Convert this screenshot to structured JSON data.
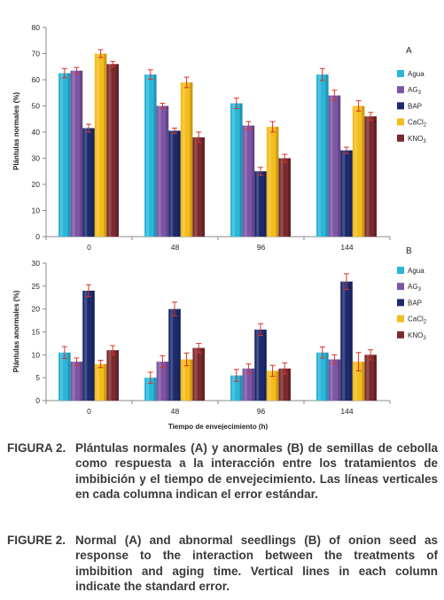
{
  "chart_data": [
    {
      "type": "bar",
      "panel_label": "A",
      "ylabel": "Plántulas normales (%)",
      "xlabel": "Tiempo de envejecimiento (h)",
      "categories": [
        "0",
        "48",
        "96",
        "144"
      ],
      "ylim": [
        0,
        80
      ],
      "yticks": [
        "0",
        "10",
        "20",
        "30",
        "40",
        "50",
        "60",
        "70",
        "80"
      ],
      "grid": false,
      "legend_position": "right",
      "series": [
        {
          "name": "Agua",
          "values": [
            62.5,
            62,
            51,
            62
          ],
          "errors": [
            1.8,
            1.8,
            2.0,
            2.3
          ],
          "color": "#29b6d9"
        },
        {
          "name": "AG3",
          "values": [
            63.5,
            50,
            42.5,
            54
          ],
          "errors": [
            1.2,
            1.0,
            1.5,
            2.0
          ],
          "color": "#7d55a5"
        },
        {
          "name": "BAP",
          "values": [
            41.5,
            40.5,
            25,
            33
          ],
          "errors": [
            1.5,
            1.0,
            1.5,
            1.2
          ],
          "color": "#1d2b6e"
        },
        {
          "name": "CaCl2",
          "values": [
            70,
            59,
            42,
            50
          ],
          "errors": [
            1.5,
            2.0,
            2.0,
            2.0
          ],
          "color": "#f4bc1c"
        },
        {
          "name": "KNO3",
          "values": [
            66,
            38,
            30,
            46
          ],
          "errors": [
            1.0,
            2.0,
            1.5,
            1.5
          ],
          "color": "#7a2a2e"
        }
      ]
    },
    {
      "type": "bar",
      "panel_label": "B",
      "ylabel": "Plántulas anormales (%)",
      "xlabel": "Tiempo de envejecimiento (h)",
      "categories": [
        "0",
        "48",
        "96",
        "144"
      ],
      "ylim": [
        0,
        30
      ],
      "yticks": [
        "0",
        "5",
        "10",
        "15",
        "20",
        "25",
        "30"
      ],
      "grid": false,
      "legend_position": "right",
      "series": [
        {
          "name": "Agua",
          "values": [
            10.5,
            5,
            5.5,
            10.5
          ],
          "errors": [
            1.3,
            1.2,
            1.3,
            1.2
          ],
          "color": "#29b6d9"
        },
        {
          "name": "AG3",
          "values": [
            8.5,
            8.5,
            7,
            9
          ],
          "errors": [
            0.8,
            1.3,
            1.0,
            1.0
          ],
          "color": "#7d55a5"
        },
        {
          "name": "BAP",
          "values": [
            24,
            20,
            15.5,
            26
          ],
          "errors": [
            1.3,
            1.5,
            1.3,
            1.7
          ],
          "color": "#1d2b6e"
        },
        {
          "name": "CaCl2",
          "values": [
            8,
            9,
            6.5,
            8.5
          ],
          "errors": [
            0.8,
            1.4,
            1.2,
            2.0
          ],
          "color": "#f4bc1c"
        },
        {
          "name": "KNO3",
          "values": [
            11,
            11.5,
            7,
            10
          ],
          "errors": [
            1.0,
            1.0,
            1.2,
            1.1
          ],
          "color": "#7a2a2e"
        }
      ]
    }
  ],
  "legend": [
    {
      "base": "Agua",
      "sub": ""
    },
    {
      "base": "AG",
      "sub": "3"
    },
    {
      "base": "BAP",
      "sub": ""
    },
    {
      "base": "CaCl",
      "sub": "2"
    },
    {
      "base": "KNO",
      "sub": "3"
    }
  ],
  "captions": {
    "es_label": "FIGURA 2.",
    "es_text": "Plántulas normales (A) y anormales (B) de semillas de cebolla como respuesta a la interacción entre los tratamientos de imbibición y el tiempo de envejecimiento. Las líneas verticales en cada columna indican el error estándar.",
    "en_label": "FIGURE 2.",
    "en_text": "Normal (A) and abnormal seedlings (B) of onion seed as response to the interaction between the treatments of imbibition and aging time. Vertical lines in each column indicate the standard error."
  }
}
